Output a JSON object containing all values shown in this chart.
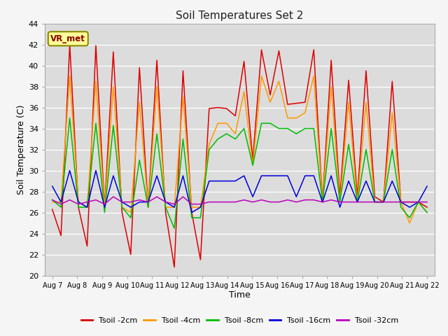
{
  "title": "Soil Temperatures Set 2",
  "xlabel": "Time",
  "ylabel": "Soil Temperature (C)",
  "ylim": [
    20,
    44
  ],
  "yticks": [
    20,
    22,
    24,
    26,
    28,
    30,
    32,
    34,
    36,
    38,
    40,
    42,
    44
  ],
  "annotation": "VR_met",
  "plot_bg_color": "#dcdcdc",
  "fig_bg_color": "#f5f5f5",
  "legend": [
    {
      "label": "Tsoil -2cm",
      "color": "#dd0000"
    },
    {
      "label": "Tsoil -4cm",
      "color": "#ff9900"
    },
    {
      "label": "Tsoil -8cm",
      "color": "#00bb00"
    },
    {
      "label": "Tsoil -16cm",
      "color": "#0000dd"
    },
    {
      "label": "Tsoil -32cm",
      "color": "#bb00bb"
    }
  ],
  "x_labels": [
    "Aug 7",
    "Aug 8",
    "Aug 9",
    "Aug 10",
    "Aug 11",
    "Aug 12",
    "Aug 13",
    "Aug 14",
    "Aug 15",
    "Aug 16",
    "Aug 17",
    "Aug 18",
    "Aug 19",
    "Aug 20",
    "Aug 21",
    "Aug 22"
  ],
  "tsoil_2cm": [
    26.3,
    23.8,
    42.0,
    26.5,
    22.8,
    41.9,
    26.5,
    41.3,
    26.0,
    22.0,
    39.8,
    26.5,
    40.5,
    26.0,
    20.8,
    39.5,
    26.0,
    21.5,
    35.9,
    36.0,
    35.9,
    35.2,
    40.4,
    31.0,
    41.5,
    37.2,
    41.4,
    36.3,
    36.4,
    36.5,
    41.5,
    27.0,
    40.5,
    27.5,
    38.6,
    27.5,
    39.5,
    27.5,
    27.0,
    38.5,
    27.0,
    27.0,
    27.0,
    26.5
  ],
  "tsoil_4cm": [
    27.0,
    27.0,
    39.0,
    27.0,
    26.5,
    38.5,
    26.5,
    38.0,
    26.5,
    26.0,
    36.5,
    26.5,
    38.0,
    26.5,
    26.5,
    37.0,
    26.5,
    26.5,
    32.5,
    34.5,
    34.5,
    33.5,
    37.5,
    30.5,
    39.0,
    36.5,
    38.5,
    35.0,
    35.0,
    35.5,
    39.0,
    27.0,
    38.0,
    27.0,
    36.5,
    27.0,
    36.5,
    27.0,
    27.0,
    35.5,
    27.0,
    25.0,
    27.0,
    26.0
  ],
  "tsoil_8cm": [
    27.2,
    26.5,
    35.0,
    26.5,
    26.5,
    34.5,
    26.0,
    34.3,
    26.5,
    25.5,
    31.0,
    26.5,
    33.5,
    26.5,
    24.5,
    33.0,
    25.5,
    25.5,
    32.0,
    33.0,
    33.5,
    33.0,
    34.0,
    30.5,
    34.5,
    34.5,
    34.0,
    34.0,
    33.5,
    34.0,
    34.0,
    27.0,
    34.0,
    27.0,
    32.5,
    27.0,
    32.0,
    27.0,
    27.0,
    32.0,
    26.5,
    25.5,
    27.0,
    26.0
  ],
  "tsoil_16cm": [
    28.5,
    27.0,
    30.0,
    27.0,
    26.5,
    30.0,
    26.5,
    29.5,
    27.0,
    26.5,
    27.0,
    27.0,
    29.5,
    27.0,
    26.5,
    29.5,
    26.0,
    26.5,
    29.0,
    29.0,
    29.0,
    29.0,
    29.5,
    27.5,
    29.5,
    29.5,
    29.5,
    29.5,
    27.5,
    29.5,
    29.5,
    27.0,
    29.5,
    26.5,
    29.0,
    27.0,
    29.0,
    27.0,
    27.0,
    29.0,
    27.0,
    26.5,
    27.0,
    28.5
  ],
  "tsoil_32cm": [
    27.2,
    26.8,
    27.2,
    26.8,
    27.0,
    27.2,
    26.8,
    27.5,
    27.0,
    27.0,
    27.2,
    27.0,
    27.5,
    27.0,
    26.8,
    27.5,
    26.8,
    26.8,
    27.0,
    27.0,
    27.0,
    27.0,
    27.2,
    27.0,
    27.2,
    27.0,
    27.0,
    27.2,
    27.0,
    27.2,
    27.2,
    27.0,
    27.2,
    27.0,
    27.0,
    27.0,
    27.0,
    27.0,
    27.0,
    27.0,
    27.0,
    27.0,
    27.0,
    27.0
  ]
}
